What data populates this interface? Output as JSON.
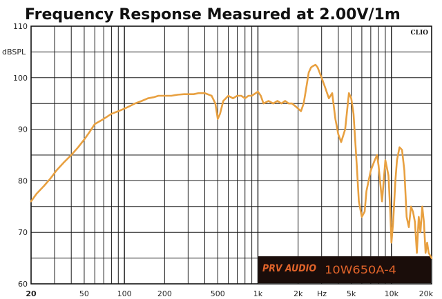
{
  "chart_data": {
    "type": "line",
    "title": "Frequency Response Measured at 2.00V/1m",
    "xlabel": "Hz",
    "ylabel": "dBSPL",
    "x_scale": "log",
    "xlim": [
      20,
      20000
    ],
    "ylim": [
      60,
      110
    ],
    "grid": true,
    "watermark": "CLIO",
    "brand": "PRV AUDIO",
    "model_label": "10W650A-4",
    "line_color": "#e8a040",
    "accent_color": "#e0632a",
    "x_ticks": [
      {
        "value": 20,
        "label": "20",
        "bold": true
      },
      {
        "value": 50,
        "label": "50",
        "bold": false
      },
      {
        "value": 100,
        "label": "100",
        "bold": false
      },
      {
        "value": 200,
        "label": "200",
        "bold": false
      },
      {
        "value": 500,
        "label": "500",
        "bold": false
      },
      {
        "value": 1000,
        "label": "1k",
        "bold": false
      },
      {
        "value": 2000,
        "label": "2k",
        "bold": false
      },
      {
        "value": 5000,
        "label": "5k",
        "bold": false
      },
      {
        "value": 10000,
        "label": "10k",
        "bold": false
      },
      {
        "value": 20000,
        "label": "20k",
        "bold": false
      }
    ],
    "y_ticks": [
      {
        "value": 110,
        "label": "110"
      },
      {
        "value": 100,
        "label": "100"
      },
      {
        "value": 90,
        "label": "90"
      },
      {
        "value": 80,
        "label": "80"
      },
      {
        "value": 70,
        "label": "70"
      },
      {
        "value": 60,
        "label": "60"
      }
    ],
    "series": [
      {
        "x": [
          20,
          22,
          25,
          28,
          31,
          35,
          40,
          45,
          50,
          55,
          60,
          70,
          80,
          90,
          100,
          110,
          120,
          135,
          150,
          165,
          180,
          200,
          225,
          250,
          280,
          300,
          330,
          360,
          400,
          450,
          480,
          500,
          520,
          550,
          600,
          650,
          700,
          750,
          800,
          850,
          900,
          1000,
          1050,
          1100,
          1200,
          1300,
          1400,
          1500,
          1600,
          1700,
          1800,
          1900,
          2000,
          2100,
          2200,
          2300,
          2400,
          2500,
          2600,
          2700,
          2800,
          3000,
          3200,
          3400,
          3600,
          3800,
          4000,
          4200,
          4500,
          4800,
          5000,
          5200,
          5500,
          5700,
          6000,
          6300,
          6500,
          7000,
          7500,
          7800,
          8000,
          8500,
          9000,
          9500,
          9800,
          10000,
          10300,
          10700,
          11000,
          11500,
          12000,
          12500,
          13000,
          13500,
          14000,
          14500,
          15000,
          15500,
          16000,
          16500,
          17000,
          17500,
          18000,
          18500,
          19000,
          19500,
          20000
        ],
        "y": [
          76,
          77.5,
          79,
          80.5,
          82,
          83.5,
          85,
          86.5,
          88,
          89.5,
          91,
          92,
          93,
          93.5,
          94,
          94.5,
          95,
          95.5,
          96,
          96.2,
          96.5,
          96.5,
          96.5,
          96.7,
          96.8,
          96.8,
          96.8,
          97,
          97,
          96.5,
          95,
          92,
          93,
          95.5,
          96.5,
          96,
          96.5,
          96.5,
          96,
          96.5,
          96.5,
          97.3,
          96.5,
          95,
          95.5,
          95,
          95.5,
          95,
          95.5,
          95,
          95,
          94.5,
          94,
          93.5,
          95,
          98,
          101,
          102,
          102.3,
          102.5,
          102,
          100,
          98,
          96,
          97,
          92,
          89,
          87.5,
          90,
          97,
          96,
          93,
          83,
          76,
          73,
          74,
          78,
          82,
          84,
          85,
          83,
          76,
          84,
          81,
          74,
          68,
          72,
          80,
          84,
          86.5,
          86,
          82,
          73,
          71,
          75,
          74,
          72,
          66,
          73,
          70,
          75,
          72,
          66,
          68,
          66,
          65.5,
          65
        ]
      }
    ]
  }
}
